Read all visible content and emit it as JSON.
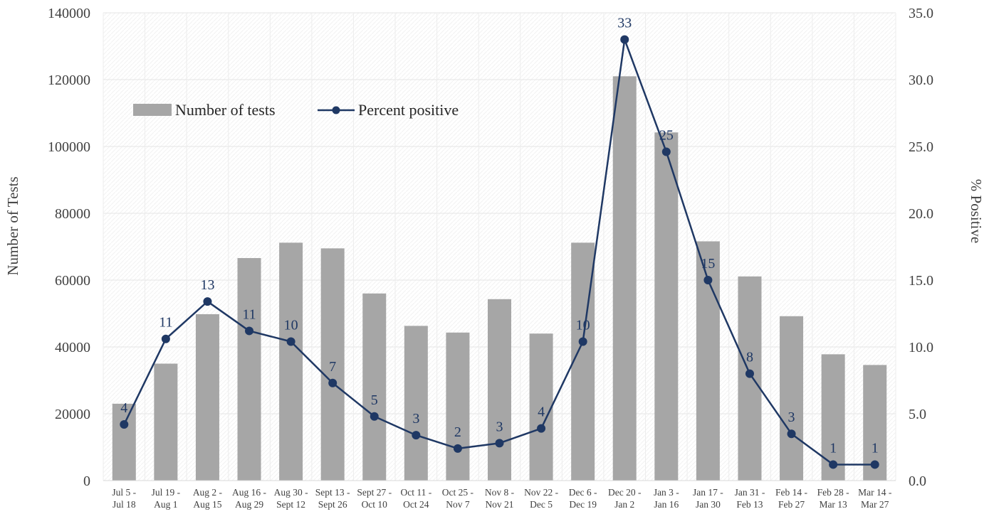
{
  "chart_data": {
    "type": "bar",
    "secondary_type": "line",
    "categories": [
      [
        "Jul 5 -",
        "Jul 18"
      ],
      [
        "Jul 19 -",
        "Aug 1"
      ],
      [
        "Aug 2 -",
        "Aug 15"
      ],
      [
        "Aug 16 -",
        "Aug 29"
      ],
      [
        "Aug 30 -",
        "Sept 12"
      ],
      [
        "Sept 13 -",
        "Sept 26"
      ],
      [
        "Sept 27 -",
        "Oct 10"
      ],
      [
        "Oct 11 -",
        "Oct 24"
      ],
      [
        "Oct 25 -",
        "Nov 7"
      ],
      [
        "Nov 8 -",
        "Nov 21"
      ],
      [
        "Nov 22 -",
        "Dec 5"
      ],
      [
        "Dec 6 -",
        "Dec 19"
      ],
      [
        "Dec 20 -",
        "Jan 2"
      ],
      [
        "Jan 3 -",
        "Jan 16"
      ],
      [
        "Jan 17 -",
        "Jan 30"
      ],
      [
        "Jan 31 -",
        "Feb 13"
      ],
      [
        "Feb 14 -",
        "Feb 27"
      ],
      [
        "Feb 28 -",
        "Mar 13"
      ],
      [
        "Mar 14 -",
        "Mar 27"
      ]
    ],
    "series": [
      {
        "name": "Number of tests",
        "type": "bar",
        "axis": "left",
        "color": "#a6a6a6",
        "values": [
          23000,
          35000,
          49800,
          66600,
          71200,
          69500,
          56000,
          46300,
          44300,
          54300,
          44000,
          71200,
          121000,
          104200,
          71600,
          61100,
          49200,
          37800,
          34600
        ]
      },
      {
        "name": "Percent positive",
        "type": "line",
        "axis": "right",
        "color": "#1f3864",
        "values": [
          4.2,
          10.6,
          13.4,
          11.2,
          10.4,
          7.3,
          4.8,
          3.4,
          2.4,
          2.8,
          3.9,
          10.4,
          33.0,
          24.6,
          15.0,
          8.0,
          3.5,
          1.2,
          1.2
        ],
        "data_labels": [
          "4",
          "11",
          "13",
          "11",
          "10",
          "7",
          "5",
          "3",
          "2",
          "3",
          "4",
          "10",
          "33",
          "25",
          "15",
          "8",
          "3",
          "1",
          "1"
        ]
      }
    ],
    "ylabel": "Number of Tests",
    "ylim": [
      0,
      140000
    ],
    "yticks": [
      "0",
      "20000",
      "40000",
      "60000",
      "80000",
      "100000",
      "120000",
      "140000"
    ],
    "y2label": "% Positive",
    "y2lim": [
      0,
      35
    ],
    "y2ticks": [
      "0.0",
      "5.0",
      "10.0",
      "15.0",
      "20.0",
      "25.0",
      "30.0",
      "35.0"
    ],
    "grid": true,
    "legend": "top-left",
    "legend_items": [
      "Number of tests",
      "Percent positive"
    ]
  }
}
